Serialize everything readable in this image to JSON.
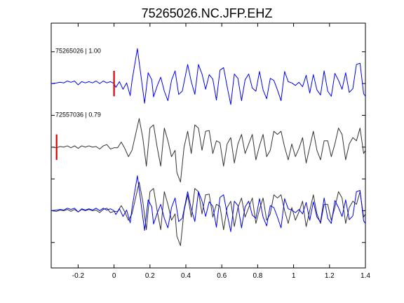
{
  "chart_data": {
    "type": "line",
    "title": "75265026.NC.JFP.EHZ",
    "xlabel": "",
    "ylabel": "",
    "xlim": [
      -0.35,
      1.4
    ],
    "ylim": [
      -2.9,
      0.95
    ],
    "grid": false,
    "x_ticks": [
      -0.2,
      0,
      0.2,
      0.4,
      0.6,
      0.8,
      1,
      1.2,
      1.4
    ],
    "x_tick_labels": [
      "-0.2",
      "0",
      "0.2",
      "0.4",
      "0.6",
      "0.8",
      "1",
      "1.2",
      "1.4"
    ],
    "y_ticks": [
      -2.5,
      -2,
      -1.5,
      -1,
      -0.5,
      0,
      0.5
    ],
    "colors": {
      "blue": "#0000ff",
      "black": "#333333",
      "pick": "#e00000"
    },
    "traces": [
      {
        "label": "75265026 | 1.00",
        "id": "75265026",
        "cc": "1.00",
        "offset": 0,
        "color": "#0000ff",
        "pick_time": 0.0,
        "pick_half_height": 0.2,
        "points": [
          [
            -0.35,
            0
          ],
          [
            -0.32,
            0.01
          ],
          [
            -0.3,
            0.02
          ],
          [
            -0.28,
            0.01
          ],
          [
            -0.26,
            0.04
          ],
          [
            -0.24,
            0.02
          ],
          [
            -0.22,
            0.04
          ],
          [
            -0.2,
            -0.02
          ],
          [
            -0.18,
            0.03
          ],
          [
            -0.16,
            0.01
          ],
          [
            -0.14,
            0.03
          ],
          [
            -0.12,
            0.01
          ],
          [
            -0.1,
            0.04
          ],
          [
            -0.08,
            0.0
          ],
          [
            -0.06,
            0.04
          ],
          [
            -0.04,
            0.01
          ],
          [
            -0.02,
            0.03
          ],
          [
            0,
            0.0
          ],
          [
            0.01,
            -0.06
          ],
          [
            0.03,
            0.03
          ],
          [
            0.05,
            -0.09
          ],
          [
            0.07,
            0.01
          ],
          [
            0.09,
            -0.19
          ],
          [
            0.1,
            0.04
          ],
          [
            0.12,
            0.38
          ],
          [
            0.13,
            0.55
          ],
          [
            0.15,
            0.12
          ],
          [
            0.17,
            -0.31
          ],
          [
            0.19,
            0.17
          ],
          [
            0.21,
            0.06
          ],
          [
            0.22,
            -0.21
          ],
          [
            0.24,
            -0.04
          ],
          [
            0.26,
            0.1
          ],
          [
            0.28,
            -0.12
          ],
          [
            0.3,
            -0.27
          ],
          [
            0.32,
            0.05
          ],
          [
            0.34,
            0.2
          ],
          [
            0.36,
            -0.17
          ],
          [
            0.38,
            -0.12
          ],
          [
            0.41,
            0.3
          ],
          [
            0.43,
            0.03
          ],
          [
            0.45,
            -0.17
          ],
          [
            0.47,
            0.3
          ],
          [
            0.49,
            0.15
          ],
          [
            0.51,
            -0.09
          ],
          [
            0.53,
            0.14
          ],
          [
            0.55,
            0.07
          ],
          [
            0.57,
            -0.26
          ],
          [
            0.59,
            0.21
          ],
          [
            0.61,
            0.25
          ],
          [
            0.63,
            -0.05
          ],
          [
            0.65,
            -0.33
          ],
          [
            0.67,
            0.15
          ],
          [
            0.69,
            0.08
          ],
          [
            0.71,
            -0.27
          ],
          [
            0.73,
            0.06
          ],
          [
            0.75,
            0.15
          ],
          [
            0.77,
            -0.07
          ],
          [
            0.79,
            -0.12
          ],
          [
            0.81,
            0.19
          ],
          [
            0.83,
            -0.1
          ],
          [
            0.85,
            -0.24
          ],
          [
            0.87,
            0.08
          ],
          [
            0.89,
            0.05
          ],
          [
            0.91,
            -0.1
          ],
          [
            0.93,
            -0.27
          ],
          [
            0.95,
            0.19
          ],
          [
            0.97,
            0.03
          ],
          [
            0.99,
            0.01
          ],
          [
            1.01,
            -0.03
          ],
          [
            1.03,
            0.02
          ],
          [
            1.05,
            -0.05
          ],
          [
            1.07,
            0.13
          ],
          [
            1.09,
            -0.15
          ],
          [
            1.11,
            0.14
          ],
          [
            1.13,
            -0.1
          ],
          [
            1.15,
            -0.18
          ],
          [
            1.17,
            0.2
          ],
          [
            1.19,
            -0.12
          ],
          [
            1.21,
            -0.2
          ],
          [
            1.23,
            0.16
          ],
          [
            1.25,
            0.05
          ],
          [
            1.27,
            -0.09
          ],
          [
            1.29,
            0.17
          ],
          [
            1.31,
            -0.14
          ],
          [
            1.33,
            -0.08
          ],
          [
            1.35,
            0.3
          ],
          [
            1.37,
            0.32
          ],
          [
            1.39,
            -0.16
          ],
          [
            1.4,
            -0.2
          ]
        ]
      },
      {
        "label": "72557036 | 0.79",
        "id": "72557036",
        "cc": "0.79",
        "offset": -1,
        "color": "#333333",
        "pick_time": -0.32,
        "pick_half_height": 0.2,
        "points": [
          [
            -0.35,
            0
          ],
          [
            -0.32,
            -0.01
          ],
          [
            -0.3,
            0.01
          ],
          [
            -0.28,
            0.0
          ],
          [
            -0.26,
            0.02
          ],
          [
            -0.24,
            -0.01
          ],
          [
            -0.22,
            0.02
          ],
          [
            -0.2,
            -0.02
          ],
          [
            -0.18,
            0.02
          ],
          [
            -0.16,
            0.0
          ],
          [
            -0.14,
            0.02
          ],
          [
            -0.12,
            0.0
          ],
          [
            -0.1,
            0.01
          ],
          [
            -0.08,
            -0.03
          ],
          [
            -0.06,
            0.02
          ],
          [
            -0.04,
            0.04
          ],
          [
            -0.02,
            -0.03
          ],
          [
            0,
            -0.01
          ],
          [
            0.02,
            -0.01
          ],
          [
            0.04,
            0.08
          ],
          [
            0.06,
            -0.02
          ],
          [
            0.08,
            -0.15
          ],
          [
            0.1,
            -0.05
          ],
          [
            0.12,
            0.2
          ],
          [
            0.14,
            0.45
          ],
          [
            0.16,
            0.15
          ],
          [
            0.18,
            -0.3
          ],
          [
            0.2,
            0.3
          ],
          [
            0.22,
            0.35
          ],
          [
            0.24,
            0.0
          ],
          [
            0.26,
            -0.3
          ],
          [
            0.28,
            0.3
          ],
          [
            0.3,
            0.1
          ],
          [
            0.32,
            -0.15
          ],
          [
            0.34,
            -0.05
          ],
          [
            0.35,
            -0.4
          ],
          [
            0.37,
            -0.55
          ],
          [
            0.39,
            0.0
          ],
          [
            0.41,
            0.25
          ],
          [
            0.43,
            -0.1
          ],
          [
            0.45,
            0.35
          ],
          [
            0.47,
            0.3
          ],
          [
            0.49,
            -0.05
          ],
          [
            0.51,
            0.25
          ],
          [
            0.53,
            0.26
          ],
          [
            0.55,
            -0.1
          ],
          [
            0.57,
            0.1
          ],
          [
            0.59,
            0.07
          ],
          [
            0.61,
            -0.3
          ],
          [
            0.63,
            0.05
          ],
          [
            0.65,
            0.15
          ],
          [
            0.67,
            -0.25
          ],
          [
            0.69,
            0.05
          ],
          [
            0.71,
            0.2
          ],
          [
            0.73,
            -0.1
          ],
          [
            0.75,
            0.05
          ],
          [
            0.77,
            0.2
          ],
          [
            0.79,
            -0.2
          ],
          [
            0.81,
            0.02
          ],
          [
            0.83,
            0.2
          ],
          [
            0.85,
            -0.15
          ],
          [
            0.87,
            -0.05
          ],
          [
            0.89,
            0.25
          ],
          [
            0.91,
            0.2
          ],
          [
            0.93,
            0.25
          ],
          [
            0.95,
            0.0
          ],
          [
            0.97,
            -0.2
          ],
          [
            0.99,
            0.05
          ],
          [
            1.01,
            -0.15
          ],
          [
            1.03,
            -0.02
          ],
          [
            1.05,
            0.15
          ],
          [
            1.07,
            -0.25
          ],
          [
            1.09,
            0.0
          ],
          [
            1.11,
            0.25
          ],
          [
            1.13,
            -0.05
          ],
          [
            1.15,
            -0.2
          ],
          [
            1.17,
            0.1
          ],
          [
            1.19,
            0.1
          ],
          [
            1.21,
            -0.15
          ],
          [
            1.23,
            0.05
          ],
          [
            1.25,
            0.3
          ],
          [
            1.27,
            0.2
          ],
          [
            1.29,
            -0.2
          ],
          [
            1.31,
            0.05
          ],
          [
            1.33,
            0.15
          ],
          [
            1.35,
            0.1
          ],
          [
            1.37,
            0.3
          ],
          [
            1.39,
            -0.1
          ],
          [
            1.4,
            -0.05
          ]
        ]
      }
    ],
    "overlay": {
      "offset": -2,
      "traces": [
        "75265026",
        "72557036"
      ]
    }
  }
}
